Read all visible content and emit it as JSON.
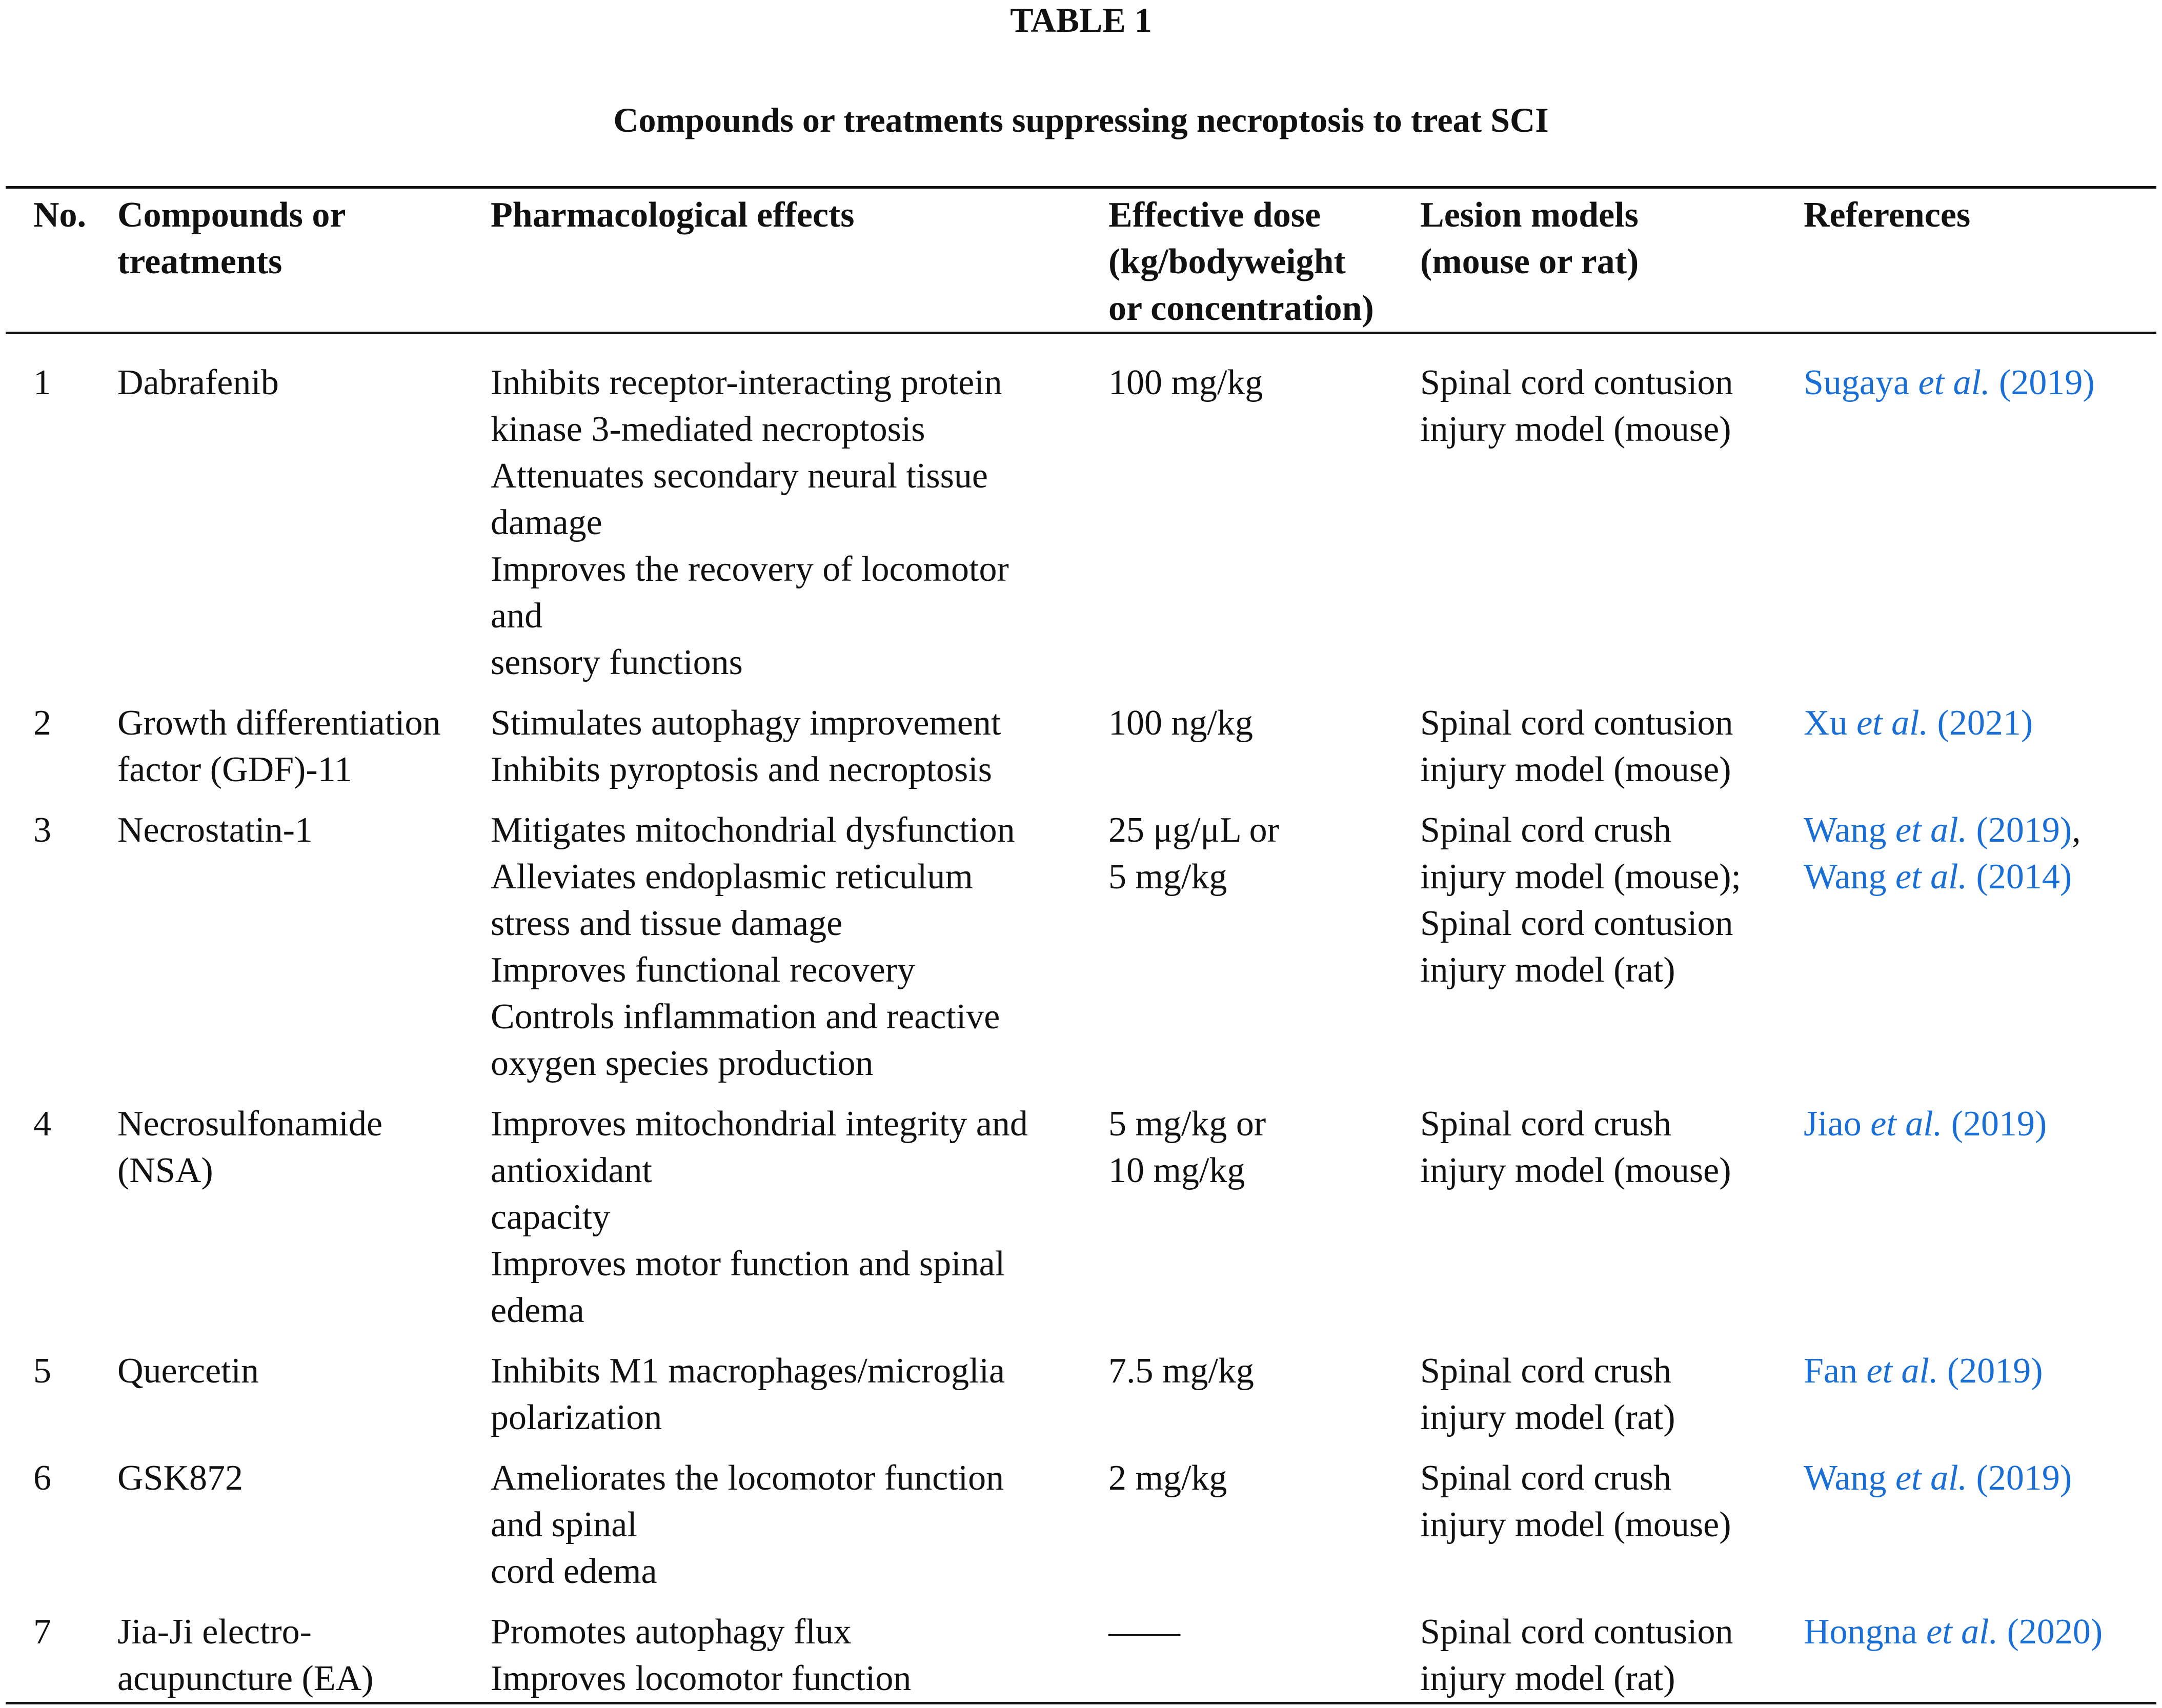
{
  "table_label": "TABLE 1",
  "caption": "Compounds or treatments suppressing necroptosis to treat SCI",
  "link_color": "#1a6fd6",
  "headers": [
    [
      "No."
    ],
    [
      "Compounds or",
      "treatments"
    ],
    [
      "Pharmacological effects"
    ],
    [
      "Effective dose",
      "(kg/bodyweight",
      "or concentration)"
    ],
    [
      "Lesion models",
      "(mouse or rat)"
    ],
    [
      "References"
    ]
  ],
  "rows": [
    {
      "no": "1",
      "compound": [
        "Dabrafenib"
      ],
      "effects": [
        "Inhibits receptor-interacting protein",
        "kinase 3-mediated necroptosis",
        "Attenuates secondary neural tissue",
        "damage",
        "Improves the recovery of locomotor",
        "and",
        "sensory functions"
      ],
      "dose": [
        "100 mg/kg"
      ],
      "model": [
        "Spinal cord contusion",
        "injury model (mouse)"
      ],
      "refs": [
        {
          "name": "Sugaya",
          "etal": "et al.",
          "year": "(2019)",
          "sep": ""
        }
      ]
    },
    {
      "no": "2",
      "compound": [
        "Growth differentiation",
        "factor (GDF)-11"
      ],
      "effects": [
        "Stimulates autophagy improvement",
        "Inhibits pyroptosis and necroptosis"
      ],
      "dose": [
        "100 ng/kg"
      ],
      "model": [
        "Spinal cord contusion",
        "injury model (mouse)"
      ],
      "refs": [
        {
          "name": "Xu",
          "etal": "et al.",
          "year": "(2021)",
          "sep": ""
        }
      ]
    },
    {
      "no": "3",
      "compound": [
        "Necrostatin-1"
      ],
      "effects": [
        "Mitigates mitochondrial dysfunction",
        "Alleviates endoplasmic reticulum",
        "stress and tissue damage",
        "Improves functional recovery",
        "Controls inflammation and reactive",
        "oxygen species production"
      ],
      "dose": [
        "25 μg/μL or",
        "5 mg/kg"
      ],
      "model": [
        "Spinal cord crush",
        "injury model (mouse);",
        "Spinal cord contusion",
        "injury model (rat)"
      ],
      "refs": [
        {
          "name": "Wang",
          "etal": "et al.",
          "year": "(2019)",
          "sep": ","
        },
        {
          "name": "Wang",
          "etal": "et al.",
          "year": "(2014)",
          "sep": ""
        }
      ]
    },
    {
      "no": "4",
      "compound": [
        "Necrosulfonamide",
        "(NSA)"
      ],
      "effects": [
        "Improves mitochondrial integrity and",
        "antioxidant",
        "capacity",
        "Improves motor function and spinal",
        "edema"
      ],
      "dose": [
        "5 mg/kg or",
        "10 mg/kg"
      ],
      "model": [
        "Spinal cord crush",
        "injury model (mouse)"
      ],
      "refs": [
        {
          "name": "Jiao",
          "etal": "et al.",
          "year": "(2019)",
          "sep": ""
        }
      ]
    },
    {
      "no": "5",
      "compound": [
        "Quercetin"
      ],
      "effects": [
        "Inhibits M1 macrophages/microglia",
        "polarization"
      ],
      "dose": [
        "7.5 mg/kg"
      ],
      "model": [
        "Spinal cord crush",
        "injury model (rat)"
      ],
      "refs": [
        {
          "name": "Fan",
          "etal": "et al.",
          "year": "(2019)",
          "sep": ""
        }
      ]
    },
    {
      "no": "6",
      "compound": [
        "GSK872"
      ],
      "effects": [
        "Ameliorates the locomotor function",
        "and spinal",
        "cord edema"
      ],
      "dose": [
        "2 mg/kg"
      ],
      "model": [
        "Spinal cord crush",
        "injury model (mouse)"
      ],
      "refs": [
        {
          "name": "Wang",
          "etal": "et al.",
          "year": "(2019)",
          "sep": ""
        }
      ]
    },
    {
      "no": "7",
      "compound": [
        "Jia-Ji electro-",
        "acupuncture (EA)"
      ],
      "effects": [
        "Promotes autophagy flux",
        "Improves locomotor function"
      ],
      "dose": [
        "——"
      ],
      "model": [
        "Spinal cord contusion",
        "injury model (rat)"
      ],
      "refs": [
        {
          "name": "Hongna",
          "etal": "et al.",
          "year": "(2020)",
          "sep": ""
        }
      ]
    }
  ]
}
